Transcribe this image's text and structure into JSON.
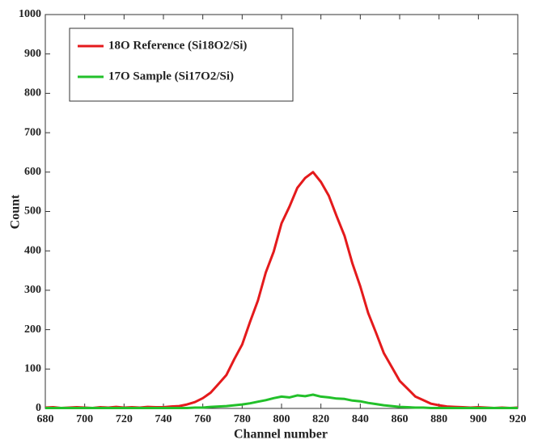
{
  "chart_data": {
    "type": "line",
    "x_label": "Channel number",
    "y_label": "Count",
    "x": [
      680,
      684,
      688,
      692,
      696,
      700,
      704,
      708,
      712,
      716,
      720,
      724,
      728,
      732,
      736,
      740,
      744,
      748,
      752,
      756,
      760,
      764,
      768,
      772,
      776,
      780,
      784,
      788,
      792,
      796,
      800,
      804,
      808,
      812,
      816,
      820,
      824,
      828,
      832,
      836,
      840,
      844,
      848,
      852,
      856,
      860,
      864,
      868,
      872,
      876,
      880,
      884,
      888,
      892,
      896,
      900,
      904,
      908,
      912,
      916,
      920
    ],
    "series": [
      {
        "name": "18O Reference (Si18O2/Si)",
        "color": "#e41a1c",
        "values": [
          2,
          3,
          1,
          2,
          3,
          2,
          1,
          3,
          2,
          4,
          2,
          3,
          2,
          4,
          3,
          3,
          5,
          6,
          10,
          16,
          26,
          40,
          62,
          85,
          125,
          162,
          220,
          274,
          345,
          398,
          470,
          512,
          560,
          585,
          600,
          575,
          540,
          488,
          438,
          368,
          310,
          242,
          192,
          140,
          105,
          70,
          50,
          30,
          21,
          12,
          8,
          5,
          4,
          3,
          2,
          3,
          2,
          1,
          2,
          1,
          2
        ]
      },
      {
        "name": "17O Sample (Si17O2/Si)",
        "color": "#22c02a",
        "values": [
          1,
          1,
          1,
          1,
          1,
          1,
          1,
          1,
          1,
          1,
          1,
          1,
          1,
          1,
          1,
          1,
          1,
          1,
          1,
          2,
          2,
          4,
          5,
          6,
          8,
          10,
          13,
          17,
          21,
          26,
          30,
          28,
          33,
          31,
          35,
          30,
          28,
          25,
          24,
          20,
          18,
          14,
          11,
          8,
          6,
          4,
          3,
          2,
          2,
          1,
          1,
          1,
          1,
          1,
          1,
          1,
          1,
          1,
          1,
          1,
          1
        ]
      }
    ],
    "xlim": [
      680,
      920
    ],
    "ylim": [
      0,
      1000
    ],
    "xticks": [
      680,
      700,
      720,
      740,
      760,
      780,
      800,
      820,
      840,
      860,
      880,
      900,
      920
    ],
    "yticks": [
      0,
      100,
      200,
      300,
      400,
      500,
      600,
      700,
      800,
      900,
      1000
    ],
    "legend": "upper left",
    "grid": false
  }
}
